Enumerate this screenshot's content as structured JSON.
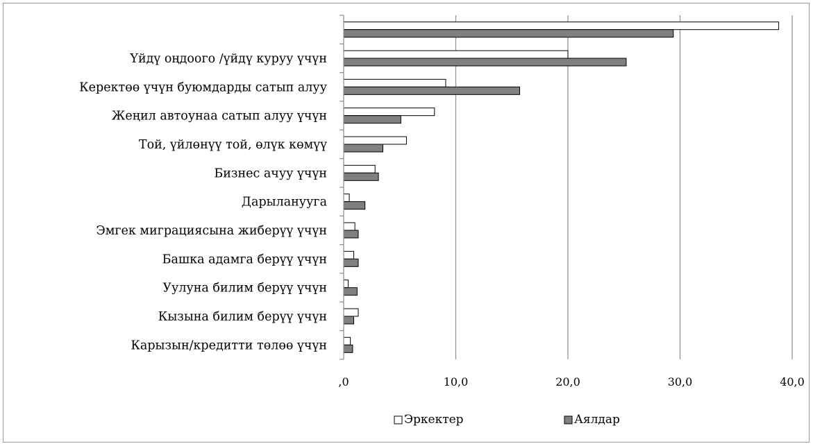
{
  "chart_data": {
    "type": "bar",
    "orientation": "horizontal",
    "title": "",
    "xlabel": "",
    "ylabel": "",
    "xlim": [
      0,
      40
    ],
    "x_ticks": [
      0,
      10,
      20,
      30,
      40
    ],
    "x_tick_labels": [
      ",0",
      "10,0",
      "20,0",
      "30,0",
      "40,0"
    ],
    "grid": "vertical",
    "legend_position": "bottom",
    "categories": [
      "",
      "Үйдү оңдоого /үйдү куруу үчүн",
      "Керектөө үчүн буюмдарды сатып алуу",
      "Жеңил автоунаа сатып алуу үчүн",
      "Той, үйлөнүү той, өлүк көмүү",
      "Бизнес ачуу  үчүн",
      "Дарылануугa",
      "Эмгек миграциясына жиберүү үчүн",
      "Башка адамга берүү үчүн",
      "Уулуна билим берүү үчүн",
      "Кызына билим берүү үчүн",
      "Карызын/кредитти төлөө үчүн"
    ],
    "series": [
      {
        "name": "Эркектер",
        "color": "#ffffff",
        "values": [
          38.8,
          20.0,
          9.1,
          8.1,
          5.6,
          2.8,
          0.5,
          1.0,
          0.9,
          0.4,
          1.3,
          0.6
        ]
      },
      {
        "name": "Аялдар",
        "color": "#808080",
        "values": [
          29.4,
          25.2,
          15.7,
          5.1,
          3.5,
          3.1,
          1.9,
          1.3,
          1.3,
          1.2,
          0.9,
          0.8
        ]
      }
    ]
  }
}
